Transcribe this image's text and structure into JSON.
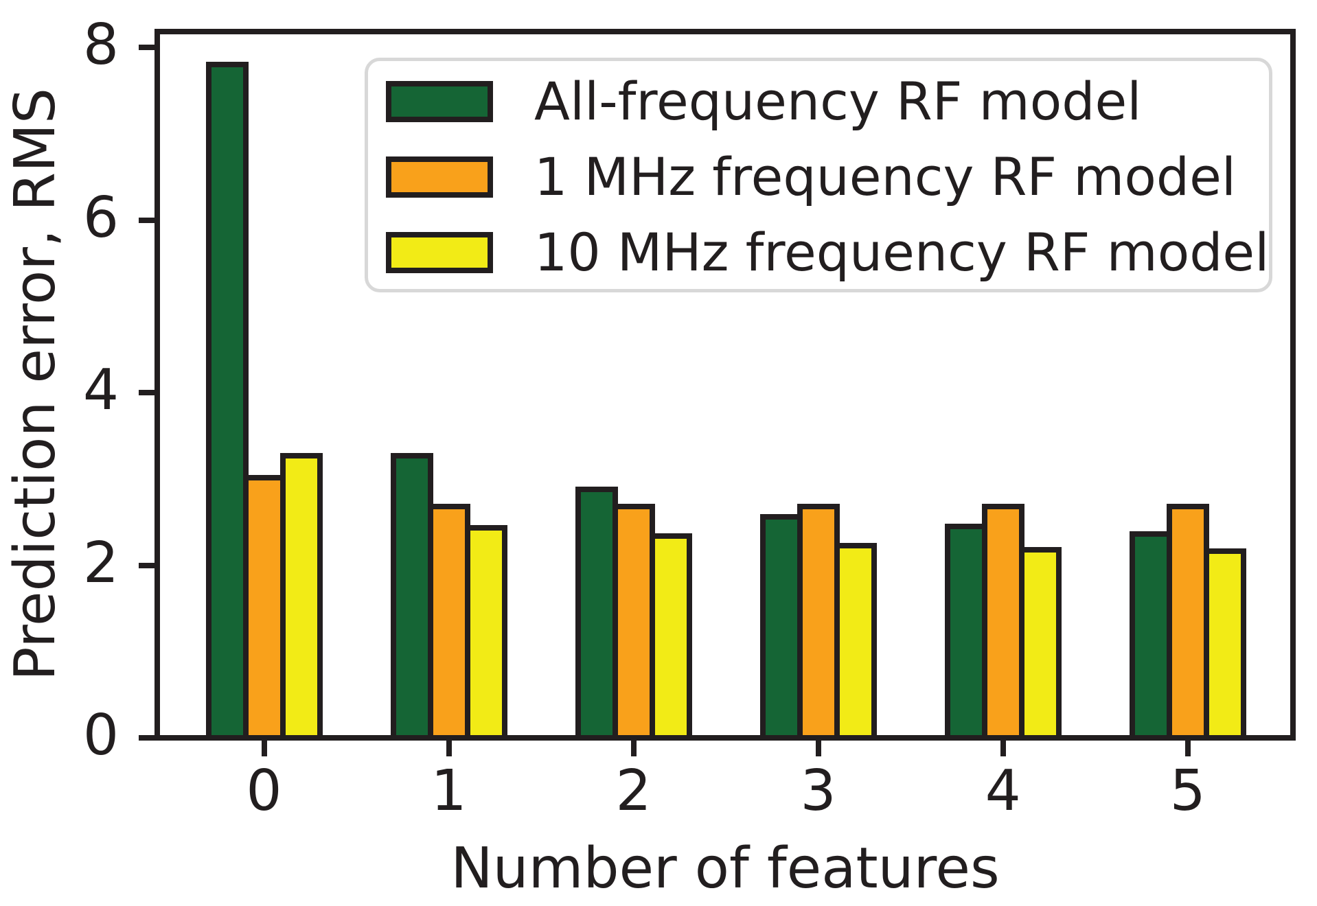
{
  "figure": {
    "background": "#ffffff",
    "text_color": "#221e1f"
  },
  "chart_data": {
    "type": "bar",
    "title": "",
    "xlabel": "Number of features",
    "ylabel": "Prediction error, RMS",
    "categories": [
      "0",
      "1",
      "2",
      "3",
      "4",
      "5"
    ],
    "series": [
      {
        "name": "All-frequency RF model",
        "key": "all-frequency-rf-model",
        "color": "#156535",
        "values": [
          7.8,
          3.27,
          2.88,
          2.56,
          2.45,
          2.36
        ]
      },
      {
        "name": "1 MHz frequency RF model",
        "key": "1mhz-frequency-rf-model",
        "color": "#f9a11b",
        "values": [
          3.01,
          2.68,
          2.68,
          2.68,
          2.68,
          2.68
        ]
      },
      {
        "name": "10 MHz frequency RF model",
        "key": "10mhz-frequency-rf-model",
        "color": "#f2eb16",
        "values": [
          3.27,
          2.43,
          2.34,
          2.23,
          2.18,
          2.16
        ]
      }
    ],
    "ylim": [
      0,
      8
    ],
    "yticks": [
      0,
      2,
      4,
      6,
      8
    ],
    "bar_edge_color": "#221e1f",
    "grid": false,
    "legend": {
      "position": "upper-right-inside",
      "border_color": "#d8d8d8"
    }
  }
}
